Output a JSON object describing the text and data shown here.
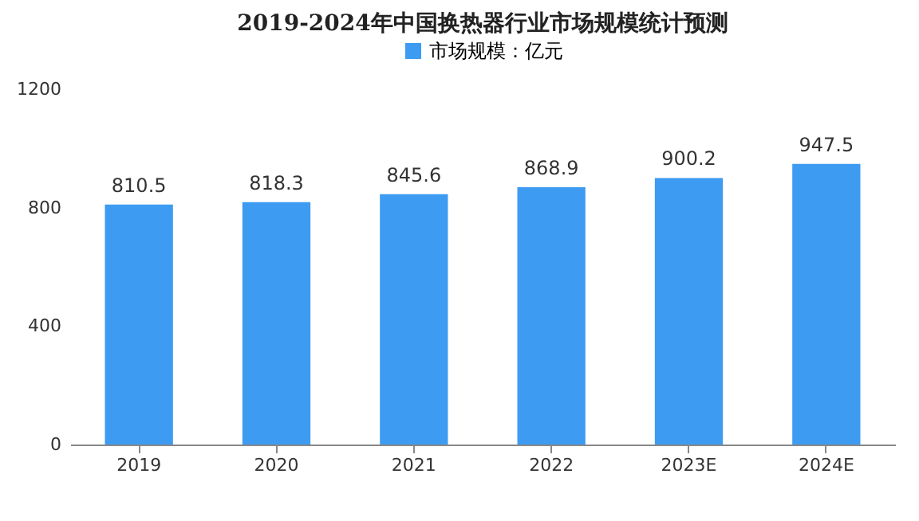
{
  "chart_data": {
    "type": "bar",
    "title": "2019-2024年中国换热器行业市场规模统计预测",
    "categories": [
      "2019",
      "2020",
      "2021",
      "2022",
      "2023E",
      "2024E"
    ],
    "series": [
      {
        "name": "市场规模：亿元",
        "color": "#3d9bf2",
        "values": [
          810.5,
          818.3,
          845.6,
          868.9,
          900.2,
          947.5
        ]
      }
    ],
    "ylim": [
      0,
      1200
    ],
    "yticks": [
      0,
      400,
      800,
      1200
    ],
    "data_labels": true,
    "legend": "top",
    "grid": false
  }
}
